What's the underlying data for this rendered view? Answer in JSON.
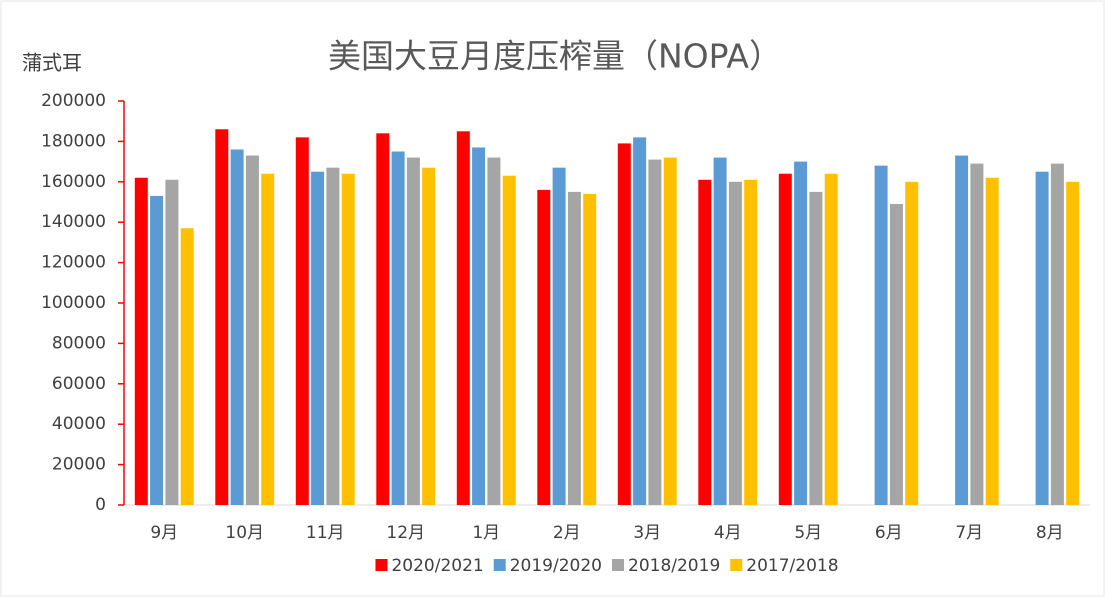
{
  "chart_data": {
    "type": "bar",
    "title": "美国大豆月度压榨量（NOPA）",
    "y_label": "蒲式耳",
    "categories": [
      "9月",
      "10月",
      "11月",
      "12月",
      "1月",
      "2月",
      "3月",
      "4月",
      "5月",
      "6月",
      "7月",
      "8月"
    ],
    "series": [
      {
        "name": "2020/2021",
        "color": "#ff0000",
        "values": [
          162000,
          186000,
          182000,
          184000,
          185000,
          156000,
          179000,
          161000,
          164000,
          null,
          null,
          null
        ]
      },
      {
        "name": "2019/2020",
        "color": "#5b9bd5",
        "values": [
          153000,
          176000,
          165000,
          175000,
          177000,
          167000,
          182000,
          172000,
          170000,
          168000,
          173000,
          165000
        ]
      },
      {
        "name": "2018/2019",
        "color": "#a5a5a5",
        "values": [
          161000,
          173000,
          167000,
          172000,
          172000,
          155000,
          171000,
          160000,
          155000,
          149000,
          169000,
          169000
        ]
      },
      {
        "name": "2017/2018",
        "color": "#ffc000",
        "values": [
          137000,
          164000,
          164000,
          167000,
          163000,
          154000,
          172000,
          161000,
          164000,
          160000,
          162000,
          160000
        ]
      }
    ],
    "ylim": [
      0,
      200000
    ],
    "yticks": [
      0,
      20000,
      40000,
      60000,
      80000,
      100000,
      120000,
      140000,
      160000,
      180000,
      200000
    ],
    "grid": false,
    "legend": "bottom",
    "axis_color": "#ff0000"
  }
}
